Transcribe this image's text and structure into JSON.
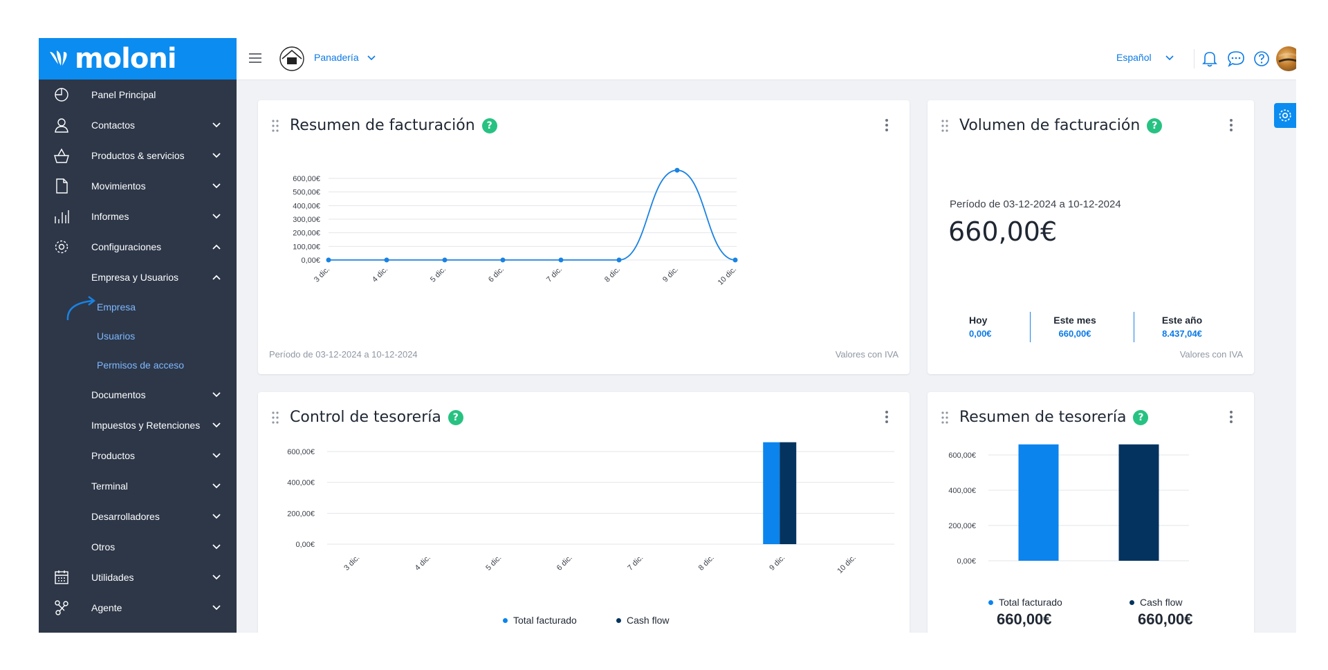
{
  "app": {
    "brand": "moloni"
  },
  "topbar": {
    "company": "Panadería",
    "language": "Español"
  },
  "sidebar": {
    "items": [
      {
        "label": "Panel Principal",
        "icon": "pie-chart-icon"
      },
      {
        "label": "Contactos",
        "icon": "user-icon"
      },
      {
        "label": "Productos & servicios",
        "icon": "basket-icon"
      },
      {
        "label": "Movimientos",
        "icon": "document-icon"
      },
      {
        "label": "Informes",
        "icon": "bar-chart-icon"
      },
      {
        "label": "Configuraciones",
        "icon": "gear-icon"
      },
      {
        "label": "Empresa y Usuarios"
      },
      {
        "label": "Empresa"
      },
      {
        "label": "Usuarios"
      },
      {
        "label": "Permisos de acceso"
      },
      {
        "label": "Documentos"
      },
      {
        "label": "Impuestos y Retenciones"
      },
      {
        "label": "Productos"
      },
      {
        "label": "Terminal"
      },
      {
        "label": "Desarrolladores"
      },
      {
        "label": "Otros"
      },
      {
        "label": "Utilidades",
        "icon": "calendar-icon"
      },
      {
        "label": "Agente",
        "icon": "nodes-icon"
      }
    ]
  },
  "cards": {
    "billing_summary": {
      "title": "Resumen de facturación",
      "period": "Período de 03-12-2024 a 10-12-2024",
      "note": "Valores con IVA"
    },
    "billing_volume": {
      "title": "Volumen de facturación",
      "period": "Período de 03-12-2024 a 10-12-2024",
      "total": "660,00€",
      "stats": [
        {
          "label": "Hoy",
          "value": "0,00€"
        },
        {
          "label": "Este mes",
          "value": "660,00€"
        },
        {
          "label": "Este año",
          "value": "8.437,04€"
        }
      ],
      "note": "Valores con IVA"
    },
    "treasury_control": {
      "title": "Control de tesorería",
      "legend": [
        "Total facturado",
        "Cash flow"
      ]
    },
    "treasury_summary": {
      "title": "Resumen de tesorería",
      "legend": [
        "Total facturado",
        "Cash flow"
      ],
      "values": [
        "660,00€",
        "660,00€"
      ]
    }
  },
  "chart_data": [
    {
      "type": "line",
      "categories": [
        "3 dic.",
        "4 dic.",
        "5 dic.",
        "6 dic.",
        "7 dic.",
        "8 dic.",
        "9 dic.",
        "10 dic."
      ],
      "values": [
        0,
        0,
        0,
        0,
        0,
        0,
        660,
        0
      ],
      "yticks": [
        "0,00€",
        "100,00€",
        "200,00€",
        "300,00€",
        "400,00€",
        "500,00€",
        "600,00€"
      ],
      "ylim": [
        0,
        600
      ],
      "color": "#1a82e2"
    },
    {
      "type": "bar",
      "categories": [
        "3 dic.",
        "4 dic.",
        "5 dic.",
        "6 dic.",
        "7 dic.",
        "8 dic.",
        "9 dic.",
        "10 dic."
      ],
      "series": [
        {
          "name": "Total facturado",
          "values": [
            0,
            0,
            0,
            0,
            0,
            0,
            660,
            0
          ],
          "color": "#0b84ee"
        },
        {
          "name": "Cash flow",
          "values": [
            0,
            0,
            0,
            0,
            0,
            0,
            660,
            0
          ],
          "color": "#04335f"
        }
      ],
      "yticks": [
        "0,00€",
        "200,00€",
        "400,00€",
        "600,00€"
      ],
      "ylim": [
        0,
        600
      ]
    },
    {
      "type": "bar",
      "categories": [
        "Total facturado",
        "Cash flow"
      ],
      "values": [
        660,
        660
      ],
      "colors": [
        "#0b84ee",
        "#04335f"
      ],
      "yticks": [
        "0,00€",
        "200,00€",
        "400,00€",
        "600,00€"
      ],
      "ylim": [
        0,
        600
      ]
    }
  ]
}
